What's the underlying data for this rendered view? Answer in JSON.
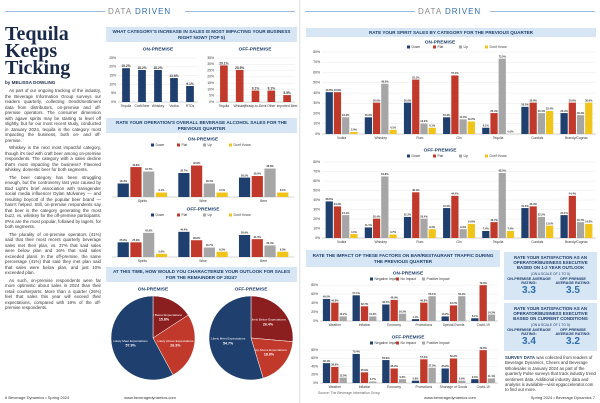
{
  "header": {
    "word1": "DATA",
    "word2": "DRIVEN"
  },
  "article": {
    "title": "Tequila Keeps Ticking",
    "byline": "by MELISSA DOWLING",
    "paragraphs": [
      "As part of our ongoing tracking of the industry, the Beverage Information Group surveys our readers quarterly, collecting trends/sentiment data from distributors, on-premise and off-premise operators. The consumer dimension with agave spirits may be starting to level off slightly, but for our most recent study, conducted in January 2024, tequila is the category most impacting the business, both on- and off-premise.",
      "Whiskey is the next most impactful category, though it's tied with craft beer among on-premise respondents. The category with a sales decline that's most impacting the business? Flavored whiskey, domestic beer for both segments.",
      "The beer category has been struggling enough, but the controversy last year caused by Bud Light's brief association with transgender social media influencer Dylan Mulvaney — and resulting boycott of the popular beer brand — hasn't helped. Still, on-premise respondents say that beer is the category generating the most buzz, vs. whiskey for the off-premise participants. IPAs are the most popular, followed by lagers, for both segments.",
      "The plurality of on-premise operators (41%) said that their most recent quarterly beverage sales met their plan, vs. 37% that said sales were below plan and 16% that said sales exceeded plans. In the off-premise, the same percentage (41%) that said they met plan said that sales were below plan, and just 10% exceeded plan.",
      "As such, on-premise respondents were far more optimistic about sales in 2024 than their retail counterparts. More than a quarter (26%) feel that sales this year will exceed their expectations, compared with 19% of the off-premise respondents."
    ]
  },
  "section_headings": [
    "WHAT CATEGORY'S INCREASE IN SALES IS MOST IMPACTING YOUR BUSINESS RIGHT NOW? (TOP 5)",
    "RATE YOUR OPERATION'S OVERALL BEVERAGE ALCOHOL SALES FOR THE PREVIOUS QUARTER",
    "AT THIS TIME, HOW WOULD YOU CHARACTERIZE YOUR OUTLOOK FOR SALES FOR THE REMAINDER OF 2024?",
    "RATE YOUR SPIRIT SALES BY CATEGORY FOR THE PREVIOUS QUARTER",
    "RATE THE IMPACT OF THESE FACTORS ON BAR/RESTAURANT TRAFFIC DURING THE PREVIOUS QUARTER"
  ],
  "chart_data": [
    {
      "type": "bar",
      "title": "ON-PREMISE",
      "categories": [
        "Tequila",
        "Craft Beer",
        "Whiskey",
        "Vodka",
        "RTDs"
      ],
      "values": [
        19.2,
        18.2,
        18.2,
        13.6,
        9.1
      ],
      "value_labels": [
        "19.2%",
        "18.2%",
        "18.2%",
        "13.6%",
        "9.1%"
      ],
      "color": "#1f3f6e",
      "ylim": [
        0,
        25
      ],
      "grid": true,
      "yticks": [
        {
          "value": 0,
          "label": "0%"
        },
        {
          "value": 5,
          "label": "5%"
        },
        {
          "value": 10,
          "label": "10%"
        },
        {
          "value": 15,
          "label": "15%"
        },
        {
          "value": 20,
          "label": "20%"
        },
        {
          "value": 25,
          "label": "25%"
        }
      ]
    },
    {
      "type": "bar",
      "title": "OFF-PREMISE",
      "categories": [
        "Tequila",
        "Whiskey",
        "Ready-to-Drink",
        "Other",
        "Imported Beer"
      ],
      "values": [
        29.1,
        25.5,
        9.1,
        9.1,
        5.5
      ],
      "value_labels": [
        "29.1%",
        "25.5%",
        "9.1%",
        "9.1%",
        "5.5%"
      ],
      "color": "#c0392b",
      "ylim": [
        0,
        35
      ],
      "grid": true,
      "yticks": [
        {
          "value": 0,
          "label": "0%"
        },
        {
          "value": 5,
          "label": "5%"
        },
        {
          "value": 10,
          "label": "10%"
        },
        {
          "value": 15,
          "label": "15%"
        },
        {
          "value": 20,
          "label": "20%"
        },
        {
          "value": 25,
          "label": "25%"
        },
        {
          "value": 30,
          "label": "30%"
        },
        {
          "value": 35,
          "label": "35%"
        }
      ]
    },
    {
      "type": "bar",
      "title": "ON-PREMISE",
      "categories": [
        "Spirits",
        "Wine",
        "Beer"
      ],
      "ylim": [
        0,
        60
      ],
      "series": [
        {
          "name": "Down",
          "color": "#1f3f6e",
          "values": [
            18.4,
            32.7,
            26.5
          ],
          "value_labels": [
            "18.4%",
            "32.7%",
            "26.5%"
          ]
        },
        {
          "name": "Flat",
          "color": "#c0392b",
          "values": [
            40.8,
            42.9,
            28.6
          ],
          "value_labels": [
            "40.8%",
            "42.9%",
            "28.6%"
          ]
        },
        {
          "name": "Up",
          "color": "#a6a6a6",
          "values": [
            34.7,
            18.4,
            38.8
          ],
          "value_labels": [
            "34.7%",
            "18.4%",
            "38.8%"
          ]
        },
        {
          "name": "Don't Know",
          "color": "#f0c419",
          "values": [
            6.1,
            6.1,
            6.1
          ],
          "value_labels": [
            "6.1%",
            "6.1%",
            "6.1%"
          ]
        }
      ]
    },
    {
      "type": "bar",
      "title": "OFF-PREMISE",
      "categories": [
        "Spirits",
        "Wine",
        "Beer"
      ],
      "ylim": [
        0,
        60
      ],
      "series": [
        {
          "name": "Down",
          "color": "#1f3f6e",
          "values": [
            25.9,
            44.4,
            38.9
          ],
          "value_labels": [
            "25.9%",
            "44.4%",
            "38.9%"
          ]
        },
        {
          "name": "Flat",
          "color": "#c0392b",
          "values": [
            25.9,
            29.6,
            31.5
          ],
          "value_labels": [
            "25.9%",
            "29.6%",
            "31.5%"
          ]
        },
        {
          "name": "Up",
          "color": "#a6a6a6",
          "values": [
            42.6,
            16.7,
            20.4
          ],
          "value_labels": [
            "42.6%",
            "16.7%",
            "20.4%"
          ]
        },
        {
          "name": "Don't Know",
          "color": "#f0c419",
          "values": [
            5.6,
            9.3,
            9.3
          ],
          "value_labels": [
            "5.6%",
            "9.3%",
            "9.3%"
          ]
        }
      ]
    },
    {
      "type": "pie",
      "title": "ON-PREMISE",
      "categories": [
        "Likely Below Expectations",
        "Likely Above Expectations",
        "Likely Meet Expectations"
      ],
      "values": [
        15.8,
        26.3,
        57.9
      ],
      "value_labels": [
        "15.8%",
        "26.3%",
        "57.9%"
      ],
      "colors": [
        "#8b1e1e",
        "#c0392b",
        "#1f3f6e"
      ]
    },
    {
      "type": "pie",
      "title": "OFF-PREMISE",
      "categories": [
        "Likely Below Expectations",
        "Likely Above Expectations",
        "Likely Meet Expectations"
      ],
      "values": [
        26.4,
        18.9,
        54.7
      ],
      "value_labels": [
        "26.4%",
        "18.9%",
        "54.7%"
      ],
      "colors": [
        "#8b1e1e",
        "#c0392b",
        "#1f3f6e"
      ]
    },
    {
      "type": "bar",
      "title": "ON-PREMISE",
      "categories": [
        "Vodka",
        "Whiskey",
        "Rum",
        "Gin",
        "Tequila",
        "Cordials",
        "Brandy/Cognac"
      ],
      "ylim": [
        0,
        80
      ],
      "grid": true,
      "yticks": [
        {
          "value": 0,
          "label": "0%"
        },
        {
          "value": 10,
          "label": "10%"
        },
        {
          "value": 20,
          "label": "20%"
        },
        {
          "value": 30,
          "label": "30%"
        },
        {
          "value": 40,
          "label": "40%"
        },
        {
          "value": 50,
          "label": "50%"
        },
        {
          "value": 60,
          "label": "60%"
        },
        {
          "value": 70,
          "label": "70%"
        },
        {
          "value": 80,
          "label": "80%"
        }
      ],
      "series": [
        {
          "name": "Down",
          "color": "#1f3f6e",
          "values": [
            40.8,
            16.3,
            30.6,
            16.3,
            6.1,
            26.5,
            20.4
          ],
          "value_labels": [
            "40.8%",
            "16.3%",
            "30.6%",
            "16.3%",
            "6.1%",
            "26.5%",
            "20.4%"
          ]
        },
        {
          "name": "Flat",
          "color": "#c0392b",
          "values": [
            40.8,
            30.6,
            53.1,
            57.1,
            20.4,
            30.6,
            30.6
          ],
          "value_labels": [
            "40.8%",
            "30.6%",
            "53.1%",
            "57.1%",
            "20.4%",
            "30.6%",
            "30.6%"
          ]
        },
        {
          "name": "Up",
          "color": "#a6a6a6",
          "values": [
            16.3,
            49.0,
            10.2,
            14.3,
            73.5,
            20.4,
            18.4
          ],
          "value_labels": [
            "16.3%",
            "49.0%",
            "10.2%",
            "14.3%",
            "73.5%",
            "20.4%",
            "18.4%"
          ]
        },
        {
          "name": "Don't Know",
          "color": "#f0c419",
          "values": [
            2.0,
            4.1,
            6.1,
            12.2,
            0,
            22.4,
            30.6
          ],
          "value_labels": [
            "2.0%",
            "4.1%",
            "6.1%",
            "12.2%",
            "0.0%",
            "22.4%",
            "30.6%"
          ]
        }
      ]
    },
    {
      "type": "bar",
      "title": "OFF-PREMISE",
      "categories": [
        "Vodka",
        "Whiskey",
        "Rum",
        "Gin",
        "Tequila",
        "Cordials",
        "Brandy/Cognac"
      ],
      "ylim": [
        0,
        80
      ],
      "grid": true,
      "yticks": [
        {
          "value": 0,
          "label": "0%"
        },
        {
          "value": 10,
          "label": "10%"
        },
        {
          "value": 20,
          "label": "20%"
        },
        {
          "value": 30,
          "label": "30%"
        },
        {
          "value": 40,
          "label": "40%"
        },
        {
          "value": 50,
          "label": "50%"
        },
        {
          "value": 60,
          "label": "60%"
        },
        {
          "value": 70,
          "label": "70%"
        },
        {
          "value": 80,
          "label": "80%"
        }
      ],
      "series": [
        {
          "name": "Down",
          "color": "#1f3f6e",
          "values": [
            38.5,
            11.1,
            22.2,
            31.5,
            7.4,
            31.5,
            24.1
          ],
          "value_labels": [
            "38.5%",
            "11.1%",
            "22.2%",
            "31.5%",
            "7.4%",
            "31.5%",
            "24.1%"
          ]
        },
        {
          "name": "Flat",
          "color": "#c0392b",
          "values": [
            33.3,
            20.4,
            48.1,
            44.4,
            16.7,
            33.3,
            44.4
          ],
          "value_labels": [
            "33.3%",
            "20.4%",
            "48.1%",
            "44.4%",
            "16.7%",
            "33.3%",
            "44.4%"
          ]
        },
        {
          "name": "Up",
          "color": "#a6a6a6",
          "values": [
            24.1,
            64.8,
            20.4,
            9.3,
            68.5,
            22.2,
            16.7
          ],
          "value_labels": [
            "24.1%",
            "64.8%",
            "20.4%",
            "9.3%",
            "68.5%",
            "22.2%",
            "16.7%"
          ]
        },
        {
          "name": "Don't Know",
          "color": "#f0c419",
          "values": [
            4.1,
            3.7,
            9.3,
            14.8,
            7.4,
            13.0,
            14.8
          ],
          "value_labels": [
            "4.1%",
            "3.7%",
            "9.3%",
            "14.8%",
            "7.4%",
            "13.0%",
            "14.8%"
          ]
        }
      ]
    },
    {
      "type": "bar",
      "title": "ON-PREMISE",
      "categories": [
        "Weather",
        "Inflation",
        "Economy",
        "Promotions",
        "Special Events",
        "Covid-19"
      ],
      "ylim": [
        0,
        80
      ],
      "grid": true,
      "yticks": [
        {
          "value": 0,
          "label": "0%"
        },
        {
          "value": 20,
          "label": "20%"
        },
        {
          "value": 40,
          "label": "40%"
        },
        {
          "value": 60,
          "label": "60%"
        },
        {
          "value": 80,
          "label": "80%"
        }
      ],
      "series": [
        {
          "name": "Negative Impact",
          "color": "#1f3f6e",
          "values": [
            49.0,
            57.1,
            36.7,
            4.1,
            10.2,
            6.1
          ],
          "value_labels": [
            "49.0%",
            "57.1%",
            "36.7%",
            "4.1%",
            "10.2%",
            "6.1%"
          ]
        },
        {
          "name": "No Impact",
          "color": "#c0392b",
          "values": [
            40.8,
            32.7,
            46.9,
            40.8,
            34.7,
            79.6
          ],
          "value_labels": [
            "40.8%",
            "32.7%",
            "46.9%",
            "40.8%",
            "34.7%",
            "79.6%"
          ]
        },
        {
          "name": "Positive Impact",
          "color": "#a6a6a6",
          "values": [
            10.2,
            10.2,
            16.3,
            55.1,
            55.1,
            14.3
          ],
          "value_labels": [
            "10.2%",
            "10.2%",
            "16.3%",
            "55.1%",
            "55.1%",
            "14.3%"
          ]
        }
      ]
    },
    {
      "type": "bar",
      "title": "OFF-PREMISE",
      "categories": [
        "Weather",
        "Inflation",
        "Economy",
        "Promotions",
        "Shortage of Goods",
        "Covid-19"
      ],
      "ylim": [
        0,
        80
      ],
      "grid": true,
      "yticks": [
        {
          "value": 0,
          "label": "0%"
        },
        {
          "value": 20,
          "label": "20%"
        },
        {
          "value": 40,
          "label": "40%"
        },
        {
          "value": 60,
          "label": "60%"
        },
        {
          "value": 80,
          "label": "80%"
        }
      ],
      "series": [
        {
          "name": "Negative Impact",
          "color": "#1f3f6e",
          "values": [
            48.1,
            70.4,
            55.6,
            5.6,
            35.2,
            9.3
          ],
          "value_labels": [
            "48.1%",
            "70.4%",
            "55.6%",
            "5.6%",
            "35.2%",
            "9.3%"
          ]
        },
        {
          "name": "No Impact",
          "color": "#c0392b",
          "values": [
            38.9,
            25.9,
            35.2,
            57.4,
            59.3,
            79.6
          ],
          "value_labels": [
            "38.9%",
            "25.9%",
            "35.2%",
            "57.4%",
            "59.3%",
            "79.6%"
          ]
        },
        {
          "name": "Positive Impact",
          "color": "#a6a6a6",
          "values": [
            13.0,
            3.7,
            9.3,
            37.0,
            5.6,
            11.1
          ],
          "value_labels": [
            "13.0%",
            "3.7%",
            "9.3%",
            "37.0%",
            "5.6%",
            "11.1%"
          ]
        }
      ]
    }
  ],
  "source": "Source: The Beverage Information Group",
  "ratings": [
    {
      "heading": "RATE YOUR SATISFACTION AS AN OPERATOR/BUSINESS EXECUTIVE BASED ON 1-2 YEAR OUTLOOK",
      "scale": "(ON A SCALE OF 1 TO 5)",
      "items": [
        {
          "label": "ON-PREMISE AVERAGE RATING:",
          "value": 3.3
        },
        {
          "label": "OFF-PREMISE AVERAGE RATING:",
          "value": 3.5
        }
      ]
    },
    {
      "heading": "RATE YOUR SATISFACTION AS AN OPERATOR/BUSINESS EXECUTIVE BASED ON CURRENT CONDITIONS",
      "scale": "(ON A SCALE OF 1 TO 5)",
      "items": [
        {
          "label": "ON-PREMISE AVERAGE RATING:",
          "value": 3.4
        },
        {
          "label": "OFF-PREMISE AVERAGE RATING:",
          "value": 3.2
        }
      ]
    }
  ],
  "survey_note": {
    "lead": "SURVEY DATA",
    "text": "was collected from readers of Beverage Dynamics, Cheers and Beverage Wholesaler in January 2024 as part of the quarterly Pulse surveys that track industry trend sentiment data. Additional industry data and analysis is available—visit epgaccelerator.com to find out more."
  },
  "footer": {
    "left": "6 Beverage Dynamics • Spring 2024",
    "url": "www.beveragedynamics.com",
    "right": "Spring 2024 • Beverage Dynamics 7"
  }
}
